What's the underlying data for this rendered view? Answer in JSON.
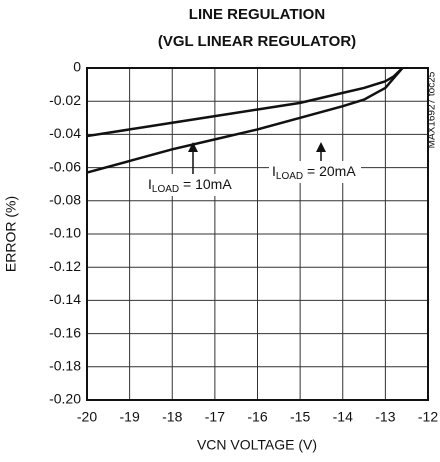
{
  "chart_data": {
    "type": "line",
    "title": "LINE REGULATION",
    "subtitle": "(VGL LINEAR REGULATOR)",
    "x_label": "VCN VOLTAGE (V)",
    "y_label": "ERROR (%)",
    "side_note": "MAX16927 toc25",
    "xlim": [
      -20,
      -12
    ],
    "xticks": [
      -20,
      -19,
      -18,
      -17,
      -16,
      -15,
      -14,
      -13,
      -12
    ],
    "ylim": [
      -0.2,
      0
    ],
    "yticks": [
      0,
      -0.02,
      -0.04,
      -0.06,
      -0.08,
      {
        "value": -0.1,
        "label": "-0.10"
      },
      -0.12,
      -0.14,
      -0.16,
      -0.18,
      {
        "value": -0.2,
        "label": "-0.20"
      }
    ],
    "grid": true,
    "series": [
      {
        "label": [
          "I",
          "LOAD",
          " = 10mA"
        ],
        "color": "#111111",
        "x": [
          -20,
          -19,
          -18,
          -17,
          -16,
          -15,
          -14,
          -13.5,
          -13,
          -12.8,
          -12.6
        ],
        "values": [
          -0.041,
          -0.037,
          -0.033,
          -0.029,
          -0.025,
          -0.021,
          -0.015,
          -0.012,
          -0.008,
          -0.005,
          0
        ]
      },
      {
        "label": [
          "I",
          "LOAD",
          " = 20mA"
        ],
        "color": "#111111",
        "x": [
          -20,
          -19,
          -18,
          -17,
          -16,
          -15,
          -14,
          -13.5,
          -13,
          -12.8,
          -12.6
        ],
        "values": [
          -0.063,
          -0.056,
          -0.049,
          -0.043,
          -0.037,
          -0.03,
          -0.023,
          -0.019,
          -0.012,
          -0.006,
          0
        ]
      }
    ]
  }
}
